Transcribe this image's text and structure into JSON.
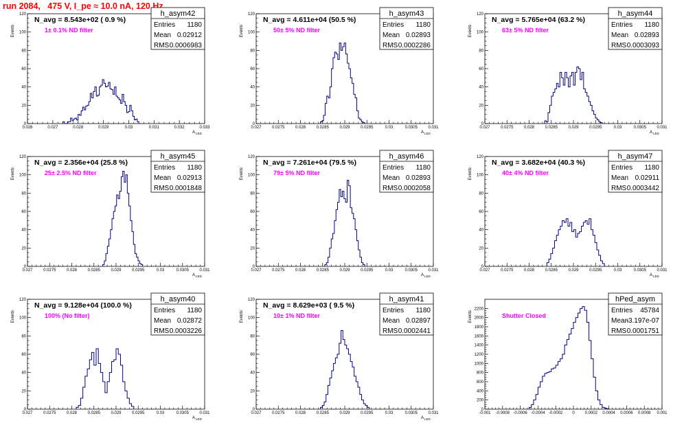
{
  "header": {
    "title": "run 2084,   475 V, I_pe ≈ 10.0 nA, 120 Hz"
  },
  "chart_data": [
    {
      "type": "histogram",
      "name": "h_asym42",
      "annotation": "N_avg = 8.543e+02 ( 0.9 %)",
      "filter": "1± 0.1% ND filter",
      "stats": {
        "entries": "1180",
        "mean": "0.02912",
        "rms": "0.0006983"
      },
      "ylabel": "Events",
      "xlabel": "A_LED",
      "xlim": [
        0.026,
        0.033
      ],
      "ylim": [
        0,
        120
      ],
      "xticks": [
        "0.026",
        "0.027",
        "0.028",
        "0.029",
        "0.03",
        "0.031",
        "0.032",
        "0.033"
      ],
      "yticks": [
        0,
        20,
        40,
        60,
        80,
        100,
        120
      ],
      "bin_edges": [
        0.0274,
        0.0304
      ],
      "lo": 0.0274,
      "hi": 0.0304,
      "values": [
        2,
        0,
        0,
        2,
        2,
        6,
        3,
        5,
        6,
        4,
        10,
        9,
        14,
        18,
        15,
        19,
        20,
        24,
        33,
        28,
        35,
        40,
        30,
        31,
        40,
        42,
        48,
        44,
        40,
        41,
        45,
        38,
        37,
        32,
        40,
        30,
        28,
        26,
        22,
        32,
        24,
        20,
        12,
        13,
        20,
        14,
        8,
        4,
        5,
        2
      ]
    },
    {
      "type": "histogram",
      "name": "h_asym43",
      "annotation": "N_avg = 4.611e+04 (50.5 %)",
      "filter": "50± 5% ND filter",
      "stats": {
        "entries": "1180",
        "mean": "0.02893",
        "rms": "0.0002286"
      },
      "ylabel": "Events",
      "xlabel": "A_LED",
      "xlim": [
        0.027,
        0.031
      ],
      "ylim": [
        0,
        120
      ],
      "xticks": [
        "0.027",
        "0.0275",
        "0.028",
        "0.0285",
        "0.029",
        "0.0295",
        "0.03",
        "0.0305",
        "0.031"
      ],
      "yticks": [
        0,
        20,
        40,
        60,
        80,
        100,
        120
      ],
      "lo": 0.02845,
      "hi": 0.02945,
      "values": [
        2,
        3,
        9,
        22,
        30,
        28,
        40,
        60,
        72,
        78,
        76,
        70,
        88,
        80,
        84,
        88,
        76,
        66,
        60,
        50,
        44,
        32,
        28,
        14,
        6,
        4,
        2,
        1
      ]
    },
    {
      "type": "histogram",
      "name": "h_asym44",
      "annotation": "N_avg = 5.765e+04 (63.2 %)",
      "filter": "63± 5% ND filter",
      "stats": {
        "entries": "1180",
        "mean": "0.02893",
        "rms": "0.0003093"
      },
      "ylabel": "Events",
      "xlabel": "A_LED",
      "xlim": [
        0.027,
        0.031
      ],
      "ylim": [
        0,
        120
      ],
      "xticks": [
        "0.027",
        "0.0275",
        "0.028",
        "0.0285",
        "0.029",
        "0.0295",
        "0.03",
        "0.0305",
        "0.031"
      ],
      "yticks": [
        0,
        20,
        40,
        60,
        80,
        100,
        120
      ],
      "lo": 0.02835,
      "hi": 0.02965,
      "values": [
        3,
        2,
        12,
        20,
        30,
        34,
        38,
        44,
        40,
        56,
        50,
        42,
        56,
        50,
        40,
        52,
        56,
        42,
        56,
        62,
        60,
        48,
        56,
        38,
        34,
        30,
        24,
        20,
        14,
        10,
        6,
        4,
        2,
        1
      ]
    },
    {
      "type": "histogram",
      "name": "h_asym45",
      "annotation": "N_avg = 2.356e+04 (25.8 %)",
      "filter": "25± 2.5% ND filter",
      "stats": {
        "entries": "1180",
        "mean": "0.02913",
        "rms": "0.0001848"
      },
      "ylabel": "Events",
      "xlabel": "A_LED",
      "xlim": [
        0.027,
        0.031
      ],
      "ylim": [
        0,
        120
      ],
      "xticks": [
        "0.027",
        "0.0275",
        "0.028",
        "0.0285",
        "0.029",
        "0.0295",
        "0.03",
        "0.0305",
        "0.031"
      ],
      "yticks": [
        0,
        20,
        40,
        60,
        80,
        100,
        120
      ],
      "lo": 0.0287,
      "hi": 0.0296,
      "values": [
        2,
        6,
        14,
        22,
        30,
        40,
        52,
        60,
        66,
        78,
        74,
        82,
        98,
        104,
        92,
        100,
        80,
        66,
        50,
        38,
        24,
        14,
        10,
        6,
        3,
        2
      ]
    },
    {
      "type": "histogram",
      "name": "h_asym46",
      "annotation": "N_avg = 7.261e+04 (79.5 %)",
      "filter": "79± 5% ND filter",
      "stats": {
        "entries": "1180",
        "mean": "0.02893",
        "rms": "0.0002058"
      },
      "ylabel": "Events",
      "xlabel": "A_LED",
      "xlim": [
        0.027,
        0.031
      ],
      "ylim": [
        0,
        120
      ],
      "xticks": [
        "0.027",
        "0.0275",
        "0.028",
        "0.0285",
        "0.029",
        "0.0295",
        "0.03",
        "0.0305",
        "0.031"
      ],
      "yticks": [
        0,
        20,
        40,
        60,
        80,
        100,
        120
      ],
      "lo": 0.02855,
      "hi": 0.02945,
      "values": [
        2,
        4,
        10,
        20,
        30,
        36,
        50,
        62,
        70,
        84,
        76,
        82,
        74,
        70,
        94,
        88,
        64,
        58,
        52,
        40,
        28,
        18,
        10,
        4,
        2
      ]
    },
    {
      "type": "histogram",
      "name": "h_asym47",
      "annotation": "N_avg = 3.682e+04 (40.3 %)",
      "filter": "40± 4% ND filter",
      "stats": {
        "entries": "1180",
        "mean": "0.02911",
        "rms": "0.0003442"
      },
      "ylabel": "Events",
      "xlabel": "A_LED",
      "xlim": [
        0.027,
        0.031
      ],
      "ylim": [
        0,
        120
      ],
      "xticks": [
        "0.027",
        "0.0275",
        "0.028",
        "0.0285",
        "0.029",
        "0.0295",
        "0.03",
        "0.0305",
        "0.031"
      ],
      "yticks": [
        0,
        20,
        40,
        60,
        80,
        100,
        120
      ],
      "lo": 0.0284,
      "hi": 0.0297,
      "values": [
        4,
        8,
        14,
        20,
        28,
        34,
        40,
        44,
        50,
        48,
        52,
        44,
        48,
        38,
        40,
        32,
        36,
        38,
        44,
        48,
        50,
        46,
        52,
        40,
        34,
        26,
        18,
        12,
        6,
        3
      ]
    },
    {
      "type": "histogram",
      "name": "h_asym40",
      "annotation": "N_avg = 9.128e+04 (100.0 %)",
      "filter": "100% (No filter)",
      "stats": {
        "entries": "1180",
        "mean": "0.02872",
        "rms": "0.0003226"
      },
      "ylabel": "Events",
      "xlabel": "A_LED",
      "xlim": [
        0.027,
        0.031
      ],
      "ylim": [
        0,
        120
      ],
      "xticks": [
        "0.027",
        "0.0275",
        "0.028",
        "0.0285",
        "0.029",
        "0.0295",
        "0.03",
        "0.0305",
        "0.031"
      ],
      "yticks": [
        0,
        20,
        40,
        60,
        80,
        100,
        120
      ],
      "lo": 0.0281,
      "hi": 0.0294,
      "values": [
        2,
        4,
        12,
        24,
        36,
        44,
        54,
        62,
        48,
        66,
        50,
        40,
        30,
        18,
        30,
        40,
        52,
        54,
        66,
        60,
        48,
        30,
        20,
        12,
        6,
        3
      ]
    },
    {
      "type": "histogram",
      "name": "h_asym41",
      "annotation": "N_avg = 8.629e+03 ( 9.5 %)",
      "filter": "10± 1% ND filter",
      "stats": {
        "entries": "1180",
        "mean": "0.02897",
        "rms": "0.0002441"
      },
      "ylabel": "Events",
      "xlabel": "A_LED",
      "xlim": [
        0.027,
        0.031
      ],
      "ylim": [
        0,
        120
      ],
      "xticks": [
        "0.027",
        "0.0275",
        "0.028",
        "0.0285",
        "0.029",
        "0.0295",
        "0.03",
        "0.0305",
        "0.031"
      ],
      "yticks": [
        0,
        20,
        40,
        60,
        80,
        100,
        120
      ],
      "lo": 0.02845,
      "hi": 0.02955,
      "values": [
        2,
        4,
        8,
        16,
        26,
        34,
        42,
        50,
        56,
        60,
        72,
        86,
        76,
        70,
        66,
        60,
        52,
        46,
        36,
        30,
        24,
        16,
        10,
        6,
        4,
        2
      ]
    },
    {
      "type": "histogram",
      "name": "hPed_asym",
      "annotation": "",
      "filter": "Shutter Closed",
      "stats": {
        "entries": "45784",
        "mean": "-3.197e-07",
        "rms": "0.0001751"
      },
      "ylabel": "Events",
      "xlabel": "",
      "xlim": [
        -0.001,
        0.001
      ],
      "ylim": [
        0,
        2400
      ],
      "xticks": [
        "-0.001",
        "-0.0008",
        "-0.0006",
        "-0.0004",
        "-0.0002",
        "0",
        "0.0002",
        "0.0004",
        "0.0006",
        "0.0008",
        "0.001"
      ],
      "yticks": [
        0,
        200,
        400,
        600,
        800,
        1000,
        1200,
        1400,
        1600,
        1800,
        2000,
        2200
      ],
      "lo": -0.0005,
      "hi": 0.0004,
      "values": [
        40,
        100,
        200,
        320,
        480,
        600,
        720,
        780,
        800,
        820,
        880,
        900,
        960,
        1040,
        1100,
        1200,
        1400,
        1520,
        1640,
        1760,
        1900,
        2000,
        2100,
        2200,
        2240,
        2160,
        1900,
        1500,
        1100,
        700,
        400,
        200,
        100,
        40,
        20,
        10
      ]
    }
  ]
}
